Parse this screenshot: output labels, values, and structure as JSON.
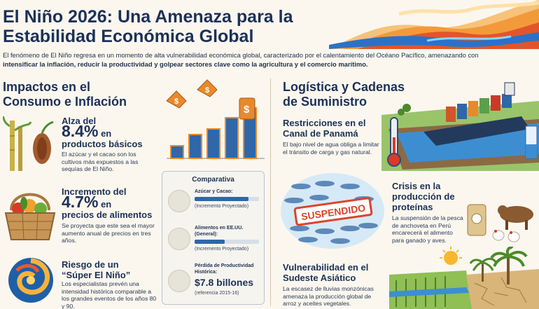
{
  "title": "El Niño 2026: Una Amenaza para la Estabilidad Económica Global",
  "intro": {
    "plain": "El fenómeno de El Niño regresa en un momento de alta vulnerabilidad económica global, caracterizado por el calentamiento del Océano Pacífico, amenazando con ",
    "bold": "intensificar la inflación, reducir la productividad y golpear sectores clave como la agricultura y el comercio marítimo."
  },
  "left_section": {
    "title_line1": "Impactos en el",
    "title_line2": "Consumo e Inflación",
    "items": [
      {
        "heading_pre": "Alza del",
        "value": "8.4%",
        "heading_post1": "en",
        "heading_post2": "productos básicos",
        "desc": "El azúcar y el cacao son los cultivos más expuestos a las sequías de El Niño."
      },
      {
        "heading_pre": "Incremento del",
        "value": "4.7%",
        "heading_post1": "en",
        "heading_post2": "precios de alimentos",
        "desc": "Se proyecta que este sea el mayor aumento anual de precios en tres años."
      },
      {
        "heading_line1": "Riesgo de un",
        "heading_line2": "“Súper El Niño”",
        "desc": "Los especialistas prevén una intensidad histórica comparable a los grandes eventos de los años 80 y 90."
      }
    ]
  },
  "comparison": {
    "title": "Comparativa",
    "rows": [
      {
        "label": "Azúcar y Cacao:",
        "sub": "(Incremento Proyectado)",
        "fill": 0.84
      },
      {
        "label": "Alimentos en EE.UU. (General):",
        "sub": "(Incremento Proyectado)",
        "fill": 0.47
      },
      {
        "label": "Pérdida de Productividad Histórica:",
        "value": "$7.8 billones",
        "sub": "(referencia 2015-16)"
      }
    ]
  },
  "price_tag_symbol": "$",
  "right_section": {
    "title_line1": "Logística y Cadenas",
    "title_line2": "de Suministro",
    "items": [
      {
        "heading_line1": "Restricciones en el",
        "heading_line2": "Canal de Panamá",
        "desc": "El bajo nivel de agua obliga a limitar el tránsito de carga y gas natural."
      },
      {
        "heading_line1": "Crisis en la",
        "heading_line2": "producción de",
        "heading_line3": "proteínas",
        "desc": "La suspensión de la pesca de anchoveta en Perú encarecerá el alimento para ganado y aves."
      },
      {
        "heading_line1": "Vulnerabilidad en el",
        "heading_line2": "Sudeste Asiático",
        "desc": "La escasez de lluvias monzónicas amenaza la producción global de arroz y aceites vegetales."
      }
    ],
    "stamp": "SUSPENDIDO"
  },
  "colors": {
    "navy": "#1c3157",
    "bar_blue": "#2f67a8",
    "orange": "#e8892b",
    "cream": "#fbf7ef"
  }
}
